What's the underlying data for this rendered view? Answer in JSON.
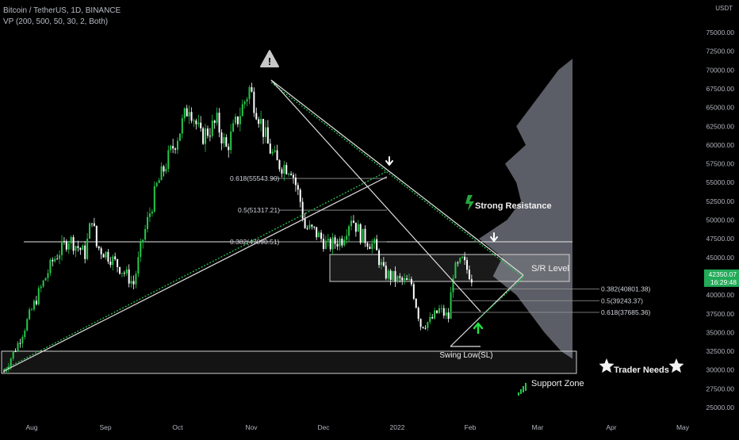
{
  "header": {
    "symbol_line": "Bitcoin / TetherUS, 1D, BINANCE",
    "indicator_line": "VP (200, 500, 50, 30, 2, Both)"
  },
  "price_axis": {
    "currency": "USDT",
    "ticks": [
      {
        "label": "75000.00",
        "value": 75000
      },
      {
        "label": "72500.00",
        "value": 72500
      },
      {
        "label": "70000.00",
        "value": 70000
      },
      {
        "label": "67500.00",
        "value": 67500
      },
      {
        "label": "65000.00",
        "value": 65000
      },
      {
        "label": "62500.00",
        "value": 62500
      },
      {
        "label": "60000.00",
        "value": 60000
      },
      {
        "label": "57500.00",
        "value": 57500
      },
      {
        "label": "55000.00",
        "value": 55000
      },
      {
        "label": "52500.00",
        "value": 52500
      },
      {
        "label": "50000.00",
        "value": 50000
      },
      {
        "label": "47500.00",
        "value": 47500
      },
      {
        "label": "45000.00",
        "value": 45000
      },
      {
        "label": "40000.00",
        "value": 40000
      },
      {
        "label": "37500.00",
        "value": 37500
      },
      {
        "label": "35000.00",
        "value": 35000
      },
      {
        "label": "32500.00",
        "value": 32500
      },
      {
        "label": "30000.00",
        "value": 30000
      },
      {
        "label": "27500.00",
        "value": 27500
      },
      {
        "label": "25000.00",
        "value": 25000
      }
    ],
    "last_price": "42350.07",
    "countdown": "16:29:48",
    "last_price_color": "#22ab58"
  },
  "time_axis": {
    "labels": [
      "Aug",
      "Sep",
      "Oct",
      "Nov",
      "Dec",
      "2022",
      "Feb",
      "Mar",
      "Apr",
      "May"
    ]
  },
  "fib_levels": [
    {
      "label": "0.618(55543.90)",
      "price": 55543.9
    },
    {
      "label": "0.5(51317.21)",
      "price": 51317.21
    },
    {
      "label": "0.382(47090.51)",
      "price": 47090.51
    },
    {
      "label": "0.382(40801.38)",
      "price": 40801.38
    },
    {
      "label": "0.5(39243.37)",
      "price": 39243.37
    },
    {
      "label": "0.618(37685.36)",
      "price": 37685.36
    }
  ],
  "annotations": {
    "strong_resistance": "Strong Resistance",
    "sr_level": "S/R Level",
    "swing_low": "Swing Low(SL)",
    "support_zone": "Support Zone",
    "trader_needs": "Trader Needs"
  },
  "colors": {
    "background": "#000000",
    "up_candle": "#26c74a",
    "down_candle": "#ffffff",
    "trendline_dotted": "#27c24c",
    "volume_profile": "#6b6f78",
    "axis_text": "#b2b5be"
  },
  "chart_data": {
    "type": "candlestick",
    "title": "Bitcoin / TetherUS, 1D, BINANCE",
    "y_range": [
      24000,
      77000
    ],
    "x_labels": [
      "Aug",
      "Sep",
      "Oct",
      "Nov",
      "Dec",
      "2022",
      "Feb",
      "Mar",
      "Apr",
      "May"
    ],
    "close_path": [
      {
        "d": 0,
        "c": 29800
      },
      {
        "d": 6,
        "c": 33500
      },
      {
        "d": 14,
        "c": 39500
      },
      {
        "d": 21,
        "c": 44500
      },
      {
        "d": 28,
        "c": 47500
      },
      {
        "d": 35,
        "c": 45500
      },
      {
        "d": 38,
        "c": 50500
      },
      {
        "d": 40,
        "c": 46500
      },
      {
        "d": 46,
        "c": 45000
      },
      {
        "d": 52,
        "c": 43000
      },
      {
        "d": 56,
        "c": 41500
      },
      {
        "d": 60,
        "c": 47500
      },
      {
        "d": 66,
        "c": 54500
      },
      {
        "d": 70,
        "c": 57500
      },
      {
        "d": 76,
        "c": 62000
      },
      {
        "d": 80,
        "c": 65500
      },
      {
        "d": 85,
        "c": 61000
      },
      {
        "d": 92,
        "c": 63000
      },
      {
        "d": 96,
        "c": 59500
      },
      {
        "d": 101,
        "c": 63500
      },
      {
        "d": 106,
        "c": 67500
      },
      {
        "d": 110,
        "c": 64000
      },
      {
        "d": 114,
        "c": 60000
      },
      {
        "d": 118,
        "c": 57500
      },
      {
        "d": 124,
        "c": 57000
      },
      {
        "d": 128,
        "c": 52500
      },
      {
        "d": 130,
        "c": 49000
      },
      {
        "d": 134,
        "c": 48500
      },
      {
        "d": 140,
        "c": 46500
      },
      {
        "d": 146,
        "c": 47500
      },
      {
        "d": 150,
        "c": 50500
      },
      {
        "d": 154,
        "c": 48000
      },
      {
        "d": 160,
        "c": 46500
      },
      {
        "d": 164,
        "c": 43000
      },
      {
        "d": 170,
        "c": 42000
      },
      {
        "d": 176,
        "c": 41500
      },
      {
        "d": 180,
        "c": 36000
      },
      {
        "d": 184,
        "c": 36500
      },
      {
        "d": 188,
        "c": 38000
      },
      {
        "d": 192,
        "c": 37000
      },
      {
        "d": 194,
        "c": 43000
      },
      {
        "d": 198,
        "c": 44500
      },
      {
        "d": 202,
        "c": 42350
      }
    ],
    "volume_profile": [
      {
        "p": 70000,
        "v": 0.15
      },
      {
        "p": 67500,
        "v": 0.3
      },
      {
        "p": 65000,
        "v": 0.45
      },
      {
        "p": 62500,
        "v": 0.6
      },
      {
        "p": 60000,
        "v": 0.5
      },
      {
        "p": 57500,
        "v": 0.72
      },
      {
        "p": 55000,
        "v": 0.6
      },
      {
        "p": 52500,
        "v": 0.55
      },
      {
        "p": 50000,
        "v": 0.7
      },
      {
        "p": 47500,
        "v": 1.0
      },
      {
        "p": 45000,
        "v": 0.75
      },
      {
        "p": 42500,
        "v": 0.85
      },
      {
        "p": 40000,
        "v": 0.6
      },
      {
        "p": 37500,
        "v": 0.45
      },
      {
        "p": 35000,
        "v": 0.3
      },
      {
        "p": 32500,
        "v": 0.12
      }
    ]
  }
}
